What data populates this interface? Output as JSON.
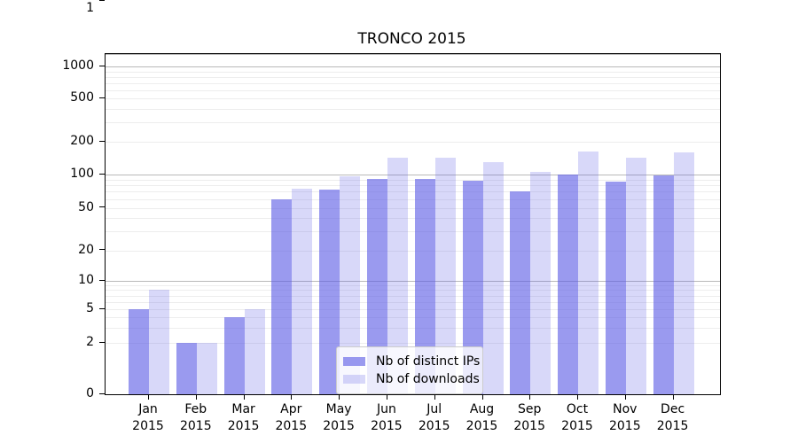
{
  "figure": {
    "title": "TRONCO 2015"
  },
  "chart_data": {
    "type": "bar",
    "title": "TRONCO 2015",
    "xlabel": "",
    "ylabel": "",
    "categories": [
      "Jan 2015",
      "Feb 2015",
      "Mar 2015",
      "Apr 2015",
      "May 2015",
      "Jun 2015",
      "Jul 2015",
      "Aug 2015",
      "Sep 2015",
      "Oct 2015",
      "Nov 2015",
      "Dec 2015"
    ],
    "series": [
      {
        "name": "Nb of distinct IPs",
        "color": "rgba(92,92,229,0.62)",
        "color_hex_on_white": "#9a9aef",
        "values": [
          5,
          2,
          4,
          60,
          73,
          92,
          92,
          88,
          71,
          100,
          86,
          99
        ]
      },
      {
        "name": "Nb of downloads",
        "color": "rgba(92,92,229,0.24)",
        "color_hex_on_white": "#d8d8f9",
        "values": [
          8,
          2,
          5,
          75,
          96,
          142,
          142,
          130,
          105,
          163,
          143,
          160
        ]
      }
    ],
    "yscale": "symlog",
    "y_ticks": [
      0,
      1,
      2,
      5,
      10,
      20,
      50,
      100,
      200,
      500,
      1000
    ],
    "ylim": [
      0,
      1300
    ],
    "grid": "horizontal major (solid gray at powers of 10) + minor (light gray log subdivisions)",
    "legend_position": "lower center",
    "legend_entries": [
      "Nb of distinct IPs",
      "Nb of downloads"
    ]
  }
}
